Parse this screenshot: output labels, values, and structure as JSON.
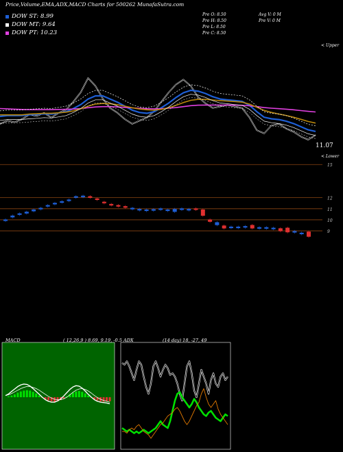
{
  "header": {
    "title": "Price,Volume,EMA,ADX,MACD Charts for 500262  MunafaSutra.com"
  },
  "legend": [
    {
      "label": "DOW ST: 8.99",
      "color": "#1e5fd6"
    },
    {
      "label": "DOW MT: 9.64",
      "color": "#ffffff"
    },
    {
      "label": "DOW PT: 10.23",
      "color": "#e040e0"
    }
  ],
  "price_info": [
    "Pre  O: 8.50",
    "Pre  H: 8.50",
    "Pre  L: 8.50",
    "Pre  C: 8.50"
  ],
  "volume_info": [
    "Avg V: 0  M",
    "Pre  V: 0  M"
  ],
  "annotations": {
    "upper_right": "< Upper",
    "lower_right": "< Lower",
    "last_price": "11.07"
  },
  "chart_data": [
    {
      "type": "line",
      "name": "price_ema",
      "series": [
        {
          "name": "Price",
          "color": "#ffffff",
          "values": [
            10.6,
            10.8,
            10.7,
            10.9,
            11.2,
            11.1,
            11.3,
            11.0,
            11.3,
            11.5,
            12.0,
            12.6,
            13.5,
            13.0,
            12.2,
            11.6,
            11.3,
            10.9,
            10.6,
            10.8,
            11.0,
            11.4,
            12.0,
            12.6,
            13.1,
            13.4,
            13.0,
            12.3,
            11.9,
            11.6,
            11.7,
            11.8,
            11.7,
            11.6,
            11.0,
            10.2,
            10.0,
            10.5,
            10.6,
            10.3,
            10.1,
            9.8,
            9.6,
            9.9
          ]
        },
        {
          "name": "",
          "color": "#1e5fd6",
          "values": [
            10.9,
            10.95,
            10.95,
            10.96,
            11.0,
            11.03,
            11.07,
            11.05,
            11.12,
            11.2,
            11.4,
            11.65,
            12.0,
            12.2,
            12.2,
            12.0,
            11.8,
            11.55,
            11.3,
            11.15,
            11.1,
            11.2,
            11.45,
            11.75,
            12.1,
            12.4,
            12.55,
            12.5,
            12.35,
            12.15,
            12.0,
            11.95,
            11.9,
            11.85,
            11.6,
            11.2,
            10.85,
            10.75,
            10.7,
            10.6,
            10.45,
            10.25,
            10.05,
            9.95
          ]
        },
        {
          "name": "",
          "color": "#e040e0",
          "values": [
            11.4,
            11.38,
            11.36,
            11.34,
            11.33,
            11.33,
            11.33,
            11.33,
            11.34,
            11.35,
            11.37,
            11.4,
            11.45,
            11.5,
            11.52,
            11.52,
            11.5,
            11.47,
            11.44,
            11.41,
            11.39,
            11.38,
            11.39,
            11.42,
            11.46,
            11.52,
            11.58,
            11.61,
            11.62,
            11.62,
            11.62,
            11.62,
            11.62,
            11.6,
            11.57,
            11.52,
            11.46,
            11.42,
            11.39,
            11.36,
            11.32,
            11.27,
            11.22,
            11.18
          ]
        },
        {
          "name": "",
          "color": "#b8860b",
          "values": [
            11.0,
            11.0,
            11.0,
            11.0,
            11.05,
            11.07,
            11.1,
            11.1,
            11.13,
            11.17,
            11.25,
            11.38,
            11.55,
            11.68,
            11.72,
            11.7,
            11.64,
            11.55,
            11.45,
            11.37,
            11.32,
            11.3,
            11.35,
            11.45,
            11.6,
            11.78,
            11.92,
            11.98,
            11.98,
            11.94,
            11.9,
            11.87,
            11.84,
            11.8,
            11.68,
            11.48,
            11.28,
            11.15,
            11.05,
            10.96,
            10.85,
            10.72,
            10.58,
            10.48
          ]
        }
      ]
    },
    {
      "type": "bar",
      "name": "candles",
      "ylim": [
        8.2,
        15.2
      ],
      "ticks": [
        15,
        12,
        11,
        10,
        9
      ],
      "values": [
        {
          "o": 10.0,
          "c": 10.0,
          "col": "#1e5fd6"
        },
        {
          "o": 10.25,
          "c": 10.35,
          "col": "#1e5fd6"
        },
        {
          "o": 10.5,
          "c": 10.55,
          "col": "#1e5fd6"
        },
        {
          "o": 10.6,
          "c": 10.7,
          "col": "#1e5fd6"
        },
        {
          "o": 10.8,
          "c": 10.9,
          "col": "#1e5fd6"
        },
        {
          "o": 11.0,
          "c": 11.05,
          "col": "#1e5fd6"
        },
        {
          "o": 11.25,
          "c": 11.3,
          "col": "#1e5fd6"
        },
        {
          "o": 11.45,
          "c": 11.5,
          "col": "#1e5fd6"
        },
        {
          "o": 11.6,
          "c": 11.65,
          "col": "#1e5fd6"
        },
        {
          "o": 11.75,
          "c": 11.8,
          "col": "#1e5fd6"
        },
        {
          "o": 12.05,
          "c": 12.1,
          "col": "#1e5fd6"
        },
        {
          "o": 12.1,
          "c": 12.15,
          "col": "#1e5fd6"
        },
        {
          "o": 12.05,
          "c": 12.1,
          "col": "#e03030"
        },
        {
          "o": 11.85,
          "c": 11.9,
          "col": "#e03030"
        },
        {
          "o": 11.55,
          "c": 11.6,
          "col": "#e03030"
        },
        {
          "o": 11.35,
          "c": 11.4,
          "col": "#e03030"
        },
        {
          "o": 11.25,
          "c": 11.3,
          "col": "#e03030"
        },
        {
          "o": 11.15,
          "c": 11.2,
          "col": "#e03030"
        },
        {
          "o": 11.0,
          "c": 11.05,
          "col": "#1e5fd6"
        },
        {
          "o": 10.9,
          "c": 10.95,
          "col": "#1e5fd6"
        },
        {
          "o": 10.85,
          "c": 10.9,
          "col": "#1e5fd6"
        },
        {
          "o": 10.88,
          "c": 10.93,
          "col": "#1e5fd6"
        },
        {
          "o": 10.95,
          "c": 11.0,
          "col": "#1e5fd6"
        },
        {
          "o": 10.85,
          "c": 10.9,
          "col": "#1e5fd6"
        },
        {
          "o": 10.75,
          "c": 10.95,
          "col": "#1e5fd6"
        },
        {
          "o": 10.95,
          "c": 11.0,
          "col": "#1e5fd6"
        },
        {
          "o": 10.9,
          "c": 10.95,
          "col": "#1e5fd6"
        },
        {
          "o": 10.95,
          "c": 11.0,
          "col": "#e03030"
        },
        {
          "o": 10.9,
          "c": 10.4,
          "col": "#e03030"
        },
        {
          "o": 10.0,
          "c": 9.85,
          "col": "#e03030"
        },
        {
          "o": 9.55,
          "c": 9.75,
          "col": "#1e5fd6"
        },
        {
          "o": 9.45,
          "c": 9.25,
          "col": "#e03030"
        },
        {
          "o": 9.35,
          "c": 9.35,
          "col": "#1e5fd6"
        },
        {
          "o": 9.3,
          "c": 9.35,
          "col": "#1e5fd6"
        },
        {
          "o": 9.35,
          "c": 9.4,
          "col": "#1e5fd6"
        },
        {
          "o": 9.5,
          "c": 9.25,
          "col": "#e03030"
        },
        {
          "o": 9.3,
          "c": 9.3,
          "col": "#1e5fd6"
        },
        {
          "o": 9.3,
          "c": 9.3,
          "col": "#1e5fd6"
        },
        {
          "o": 9.25,
          "c": 9.25,
          "col": "#1e5fd6"
        },
        {
          "o": 9.2,
          "c": 9.0,
          "col": "#e03030"
        },
        {
          "o": 9.25,
          "c": 8.9,
          "col": "#e03030"
        },
        {
          "o": 8.95,
          "c": 8.9,
          "col": "#1e5fd6"
        },
        {
          "o": 8.8,
          "c": 8.8,
          "col": "#1e5fd6"
        },
        {
          "o": 8.9,
          "c": 8.5,
          "col": "#e03030"
        }
      ]
    },
    {
      "type": "bar",
      "name": "macd",
      "title": "MACD",
      "params": "( 12,26,9 ) 8.69, 9.19, -0.5",
      "histogram": [
        0.0,
        0.1,
        0.2,
        0.35,
        0.55,
        0.7,
        0.8,
        0.85,
        0.8,
        0.65,
        0.45,
        0.2,
        -0.05,
        -0.25,
        -0.4,
        -0.5,
        -0.55,
        -0.5,
        -0.35,
        -0.15,
        0.1,
        0.35,
        0.55,
        0.7,
        0.75,
        0.65,
        0.45,
        0.2,
        -0.05,
        -0.25,
        -0.4,
        -0.5,
        -0.55,
        -0.5,
        -0.5
      ],
      "macd_line": [
        0.2,
        0.4,
        0.7,
        1.0,
        1.3,
        1.5,
        1.6,
        1.55,
        1.35,
        1.05,
        0.7,
        0.35,
        0.0,
        -0.3,
        -0.5,
        -0.6,
        -0.6,
        -0.45,
        -0.2,
        0.15,
        0.55,
        0.95,
        1.25,
        1.4,
        1.35,
        1.1,
        0.75,
        0.35,
        0.0,
        -0.3,
        -0.5,
        -0.6,
        -0.65,
        -0.7,
        -0.8
      ],
      "signal_line": [
        0.2,
        0.3,
        0.45,
        0.65,
        0.85,
        1.05,
        1.2,
        1.3,
        1.3,
        1.2,
        1.05,
        0.85,
        0.6,
        0.35,
        0.1,
        -0.1,
        -0.25,
        -0.3,
        -0.3,
        -0.2,
        0.0,
        0.3,
        0.6,
        0.85,
        1.0,
        1.05,
        0.95,
        0.75,
        0.5,
        0.2,
        -0.05,
        -0.25,
        -0.4,
        -0.5,
        -0.6
      ]
    },
    {
      "type": "line",
      "name": "adx",
      "title": "ADX",
      "params": "(14 day) 18, -27, 49",
      "series": [
        {
          "name": "",
          "color": "#ffffff",
          "values": [
            48,
            47,
            49,
            46,
            42,
            38,
            44,
            49,
            47,
            40,
            34,
            30,
            36,
            46,
            49,
            45,
            40,
            44,
            47,
            45,
            41,
            42,
            40,
            36,
            30,
            26,
            36,
            46,
            49,
            42,
            32,
            28,
            36,
            44,
            40,
            36,
            30,
            38,
            42,
            36,
            34,
            40,
            42,
            38,
            40
          ]
        },
        {
          "name": "",
          "color": "#00e000",
          "values": [
            10,
            9,
            8,
            9,
            8,
            7,
            8,
            7,
            8,
            9,
            8,
            7,
            8,
            9,
            10,
            12,
            14,
            12,
            11,
            10,
            14,
            20,
            26,
            30,
            31,
            28,
            26,
            24,
            22,
            24,
            27,
            25,
            22,
            20,
            18,
            17,
            19,
            20,
            18,
            16,
            15,
            14,
            16,
            18,
            17
          ]
        },
        {
          "name": "",
          "color": "#e07800",
          "values": [
            8,
            8,
            7,
            9,
            10,
            9,
            11,
            12,
            10,
            8,
            7,
            6,
            4,
            6,
            8,
            10,
            12,
            13,
            15,
            17,
            18,
            19,
            21,
            22,
            20,
            17,
            14,
            12,
            14,
            17,
            20,
            23,
            25,
            30,
            33,
            28,
            24,
            22,
            24,
            26,
            21,
            18,
            16,
            14,
            12
          ]
        }
      ]
    }
  ]
}
